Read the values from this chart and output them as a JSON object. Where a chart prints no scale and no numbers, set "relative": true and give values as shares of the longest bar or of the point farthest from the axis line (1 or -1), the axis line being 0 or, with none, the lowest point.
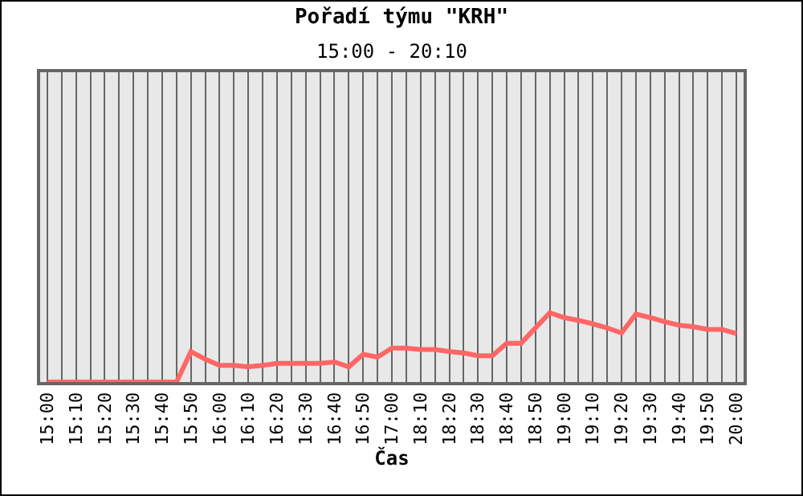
{
  "chart_data": {
    "type": "line",
    "title": "Pořadí týmu \"KRH\"",
    "subtitle": "15:00 - 20:10",
    "xlabel": "Čas",
    "categories": [
      "15:00",
      null,
      "15:10",
      null,
      "15:20",
      null,
      "15:30",
      null,
      "15:40",
      null,
      "15:50",
      null,
      "16:00",
      null,
      "16:10",
      null,
      "16:20",
      null,
      "16:30",
      null,
      "16:40",
      null,
      "16:50",
      null,
      "17:00",
      null,
      "18:10",
      null,
      "18:20",
      null,
      "18:30",
      null,
      "18:40",
      null,
      "18:50",
      null,
      "19:00",
      null,
      "19:10",
      null,
      "19:20",
      null,
      "19:30",
      null,
      "19:40",
      null,
      "19:50",
      null,
      "20:00"
    ],
    "relative": true,
    "grid": "x",
    "marker": "none",
    "line_style": "solid",
    "series": [
      {
        "color": "#ff6666",
        "values": [
          0,
          0,
          0,
          0,
          0,
          0,
          0,
          0,
          0,
          0,
          0.44,
          0.33,
          0.24,
          0.24,
          0.22,
          0.24,
          0.27,
          0.27,
          0.27,
          0.27,
          0.29,
          0.22,
          0.4,
          0.36,
          0.49,
          0.49,
          0.47,
          0.47,
          0.44,
          0.42,
          0.38,
          0.38,
          0.56,
          0.56,
          0.78,
          1,
          0.93,
          0.89,
          0.84,
          0.78,
          0.71,
          0.98,
          0.93,
          0.87,
          0.82,
          0.8,
          0.76,
          0.76,
          0.7
        ]
      }
    ]
  }
}
